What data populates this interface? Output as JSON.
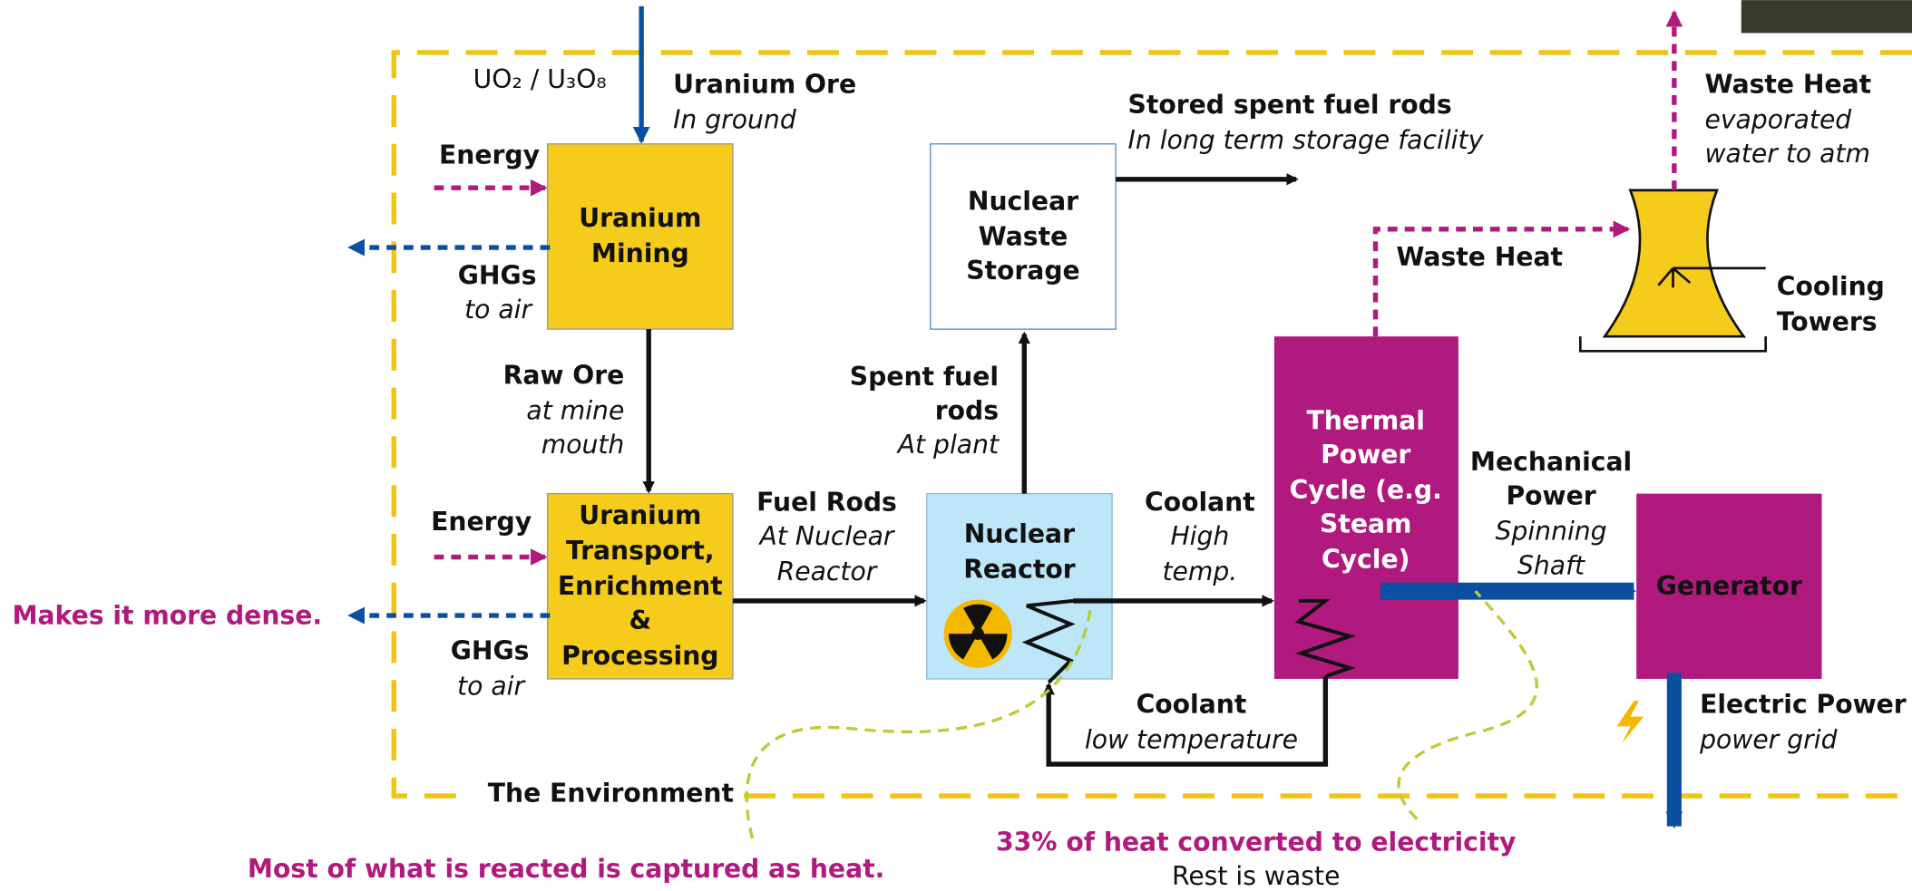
{
  "formula": "UO₂ / U₃O₈",
  "nodes": [
    {
      "lines": [
        "Uranium",
        "Mining"
      ]
    },
    {
      "lines": [
        "Uranium",
        "Transport,",
        "Enrichment",
        "&",
        "Processing"
      ]
    },
    {
      "lines": [
        "Nuclear",
        "Waste",
        "Storage"
      ]
    },
    {
      "lines": [
        "Nuclear",
        "Reactor"
      ]
    },
    {
      "lines": [
        "Thermal",
        "Power",
        "Cycle (e.g.",
        "Steam",
        "Cycle)"
      ]
    },
    {
      "lines": [
        "Generator"
      ]
    }
  ],
  "flows": [
    {
      "title": [
        "Uranium Ore"
      ],
      "detail": [
        "In ground"
      ]
    },
    {
      "title": [
        "Energy"
      ],
      "detail": []
    },
    {
      "title": [
        "GHGs"
      ],
      "detail": [
        "to air"
      ]
    },
    {
      "title": [
        "Raw Ore"
      ],
      "detail": [
        "at mine",
        "mouth"
      ]
    },
    {
      "title": [
        "Energy"
      ],
      "detail": []
    },
    {
      "title": [
        "GHGs"
      ],
      "detail": [
        "to air"
      ]
    },
    {
      "title": [
        "Fuel Rods"
      ],
      "detail": [
        "At Nuclear",
        "Reactor"
      ]
    },
    {
      "title": [
        "Spent fuel",
        "rods"
      ],
      "detail": [
        "At plant"
      ]
    },
    {
      "title": [
        "Stored spent fuel rods"
      ],
      "detail": [
        "In long term storage facility"
      ]
    },
    {
      "title": [
        "Coolant"
      ],
      "detail": [
        "High",
        "temp."
      ]
    },
    {
      "title": [
        "Coolant"
      ],
      "detail": [
        "low temperature"
      ]
    },
    {
      "title": [
        "Waste Heat"
      ],
      "detail": []
    },
    {
      "title": [
        "Waste Heat"
      ],
      "detail": [
        "evaporated",
        "water to atm"
      ]
    },
    {
      "title": [
        "Mechanical",
        "Power"
      ],
      "detail": [
        "Spinning",
        "Shaft"
      ]
    },
    {
      "title": [
        "Electric Power"
      ],
      "detail": [
        "power grid"
      ]
    }
  ],
  "cooling_towers": [
    "Cooling",
    "Towers"
  ],
  "environment": "The Environment",
  "annotations": [
    "Makes it more dense.",
    "Most of what is reacted is captured as heat.",
    "33% of heat converted to electricity",
    "Rest is waste"
  ]
}
